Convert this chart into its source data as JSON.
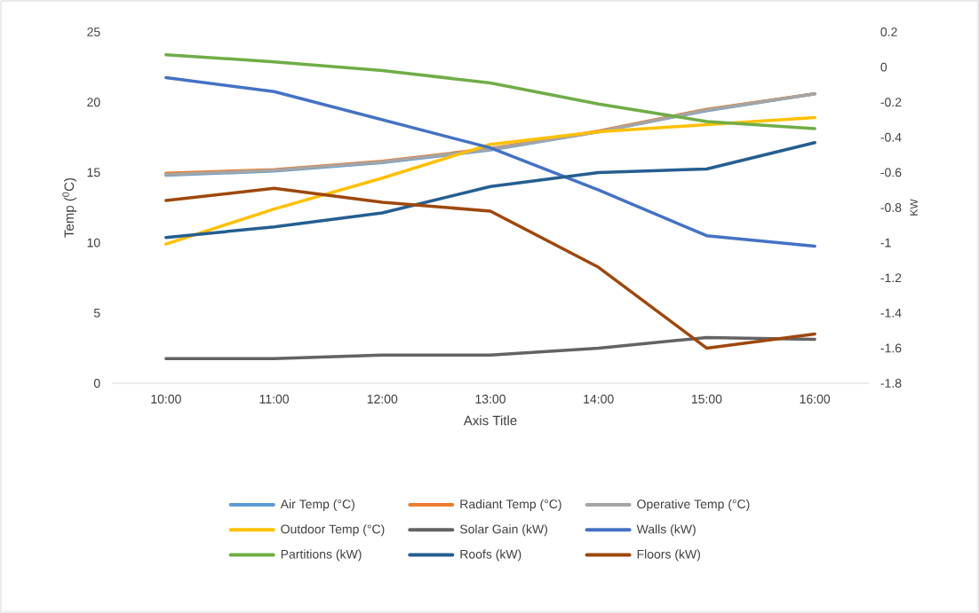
{
  "chart_data": {
    "type": "line",
    "xlabel": "Axis Title",
    "ylabel": "Temp ($^{0}$C)",
    "y2label": "KW",
    "categories": [
      "10:00",
      "11:00",
      "12:00",
      "13:00",
      "14:00",
      "15:00",
      "16:00"
    ],
    "ylim": [
      0,
      25
    ],
    "yticks": [
      0,
      5,
      10,
      15,
      20,
      25
    ],
    "y2lim": [
      -1.8,
      0.2
    ],
    "y2ticks": [
      -1.8,
      -1.6,
      -1.4,
      -1.2,
      -1,
      -0.8,
      -0.6,
      -0.4,
      -0.2,
      0,
      0.2
    ],
    "legend": "bottom",
    "marker": "none",
    "series": [
      {
        "name": "Air Temp (°C)",
        "color": "#5b9bd5",
        "values": [
          14.8,
          15.1,
          15.7,
          16.6,
          17.9,
          19.4,
          20.6
        ]
      },
      {
        "name": "Radiant Temp (°C)",
        "color": "#ed7d31",
        "values": [
          14.95,
          15.2,
          15.8,
          16.7,
          17.95,
          19.5,
          20.6
        ]
      },
      {
        "name": "Operative Temp (°C)",
        "color": "#a5a5a5",
        "values": [
          14.85,
          15.15,
          15.75,
          16.65,
          17.9,
          19.45,
          20.6
        ]
      },
      {
        "name": "Outdoor Temp (°C)",
        "color": "#ffc000",
        "values": [
          9.9,
          12.4,
          14.6,
          17.0,
          17.9,
          18.4,
          18.9
        ]
      },
      {
        "name": "Solar Gain (kW)",
        "color": "#636363",
        "axis": "y2",
        "values": [
          -1.66,
          -1.66,
          -1.64,
          -1.64,
          -1.6,
          -1.54,
          -1.55
        ]
      },
      {
        "name": "Walls (kW)",
        "color": "#4472c4",
        "axis": "y2",
        "values": [
          -0.06,
          -0.14,
          -0.3,
          -0.46,
          -0.7,
          -0.96,
          -1.02
        ]
      },
      {
        "name": "Partitions (kW)",
        "color": "#70ad47",
        "axis": "y2",
        "values": [
          0.07,
          0.03,
          -0.02,
          -0.09,
          -0.21,
          -0.31,
          -0.35
        ]
      },
      {
        "name": "Roofs (kW)",
        "color": "#255e91",
        "axis": "y2",
        "values": [
          -0.97,
          -0.91,
          -0.83,
          -0.68,
          -0.6,
          -0.58,
          -0.43
        ]
      },
      {
        "name": "Floors (kW)",
        "color": "#9e480e",
        "axis": "y2",
        "values": [
          -0.76,
          -0.69,
          -0.77,
          -0.82,
          -1.14,
          -1.6,
          -1.52
        ]
      }
    ]
  }
}
